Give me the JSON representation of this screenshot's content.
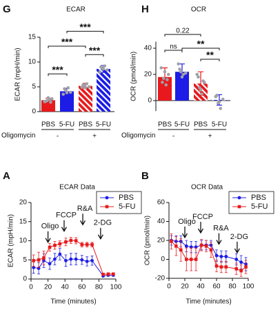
{
  "chart_data": [
    {
      "type": "bar",
      "panel": "G",
      "title": "ECAR",
      "ylabel": "ECAR (mpH/min)",
      "categories": [
        "PBS",
        "5-FU",
        "PBS",
        "5-FU"
      ],
      "colors": [
        "#e8191c",
        "#1c1ce6",
        "#e8191c",
        "#1c1ce6"
      ],
      "hatched": [
        false,
        false,
        true,
        true
      ],
      "values": [
        2.3,
        4.1,
        5.2,
        8.6
      ],
      "errors": [
        0.4,
        0.6,
        0.5,
        0.7
      ],
      "points": [
        [
          2.0,
          2.2,
          2.5,
          2.6,
          2.1,
          2.8,
          1.9
        ],
        [
          3.5,
          4.3,
          4.8,
          3.9,
          4.6,
          3.8
        ],
        [
          4.9,
          5.3,
          5.6,
          5.0,
          5.4,
          4.8
        ],
        [
          8.0,
          8.8,
          9.2,
          8.4,
          9.0,
          8.6
        ]
      ],
      "ylim": [
        0,
        15
      ],
      "yticks": [
        0,
        5,
        10,
        15
      ],
      "group_title": "Oligomycin",
      "groups": [
        "-",
        "+"
      ],
      "brackets": [
        {
          "label": "***",
          "between": [
            1,
            3
          ],
          "y": 16.2
        },
        {
          "label": "***",
          "between": [
            0,
            2
          ],
          "y": 13.2
        },
        {
          "label": "***",
          "between": [
            0,
            1
          ],
          "y": 7.6
        },
        {
          "label": "***",
          "between": [
            2,
            3
          ],
          "y": 11.5
        }
      ]
    },
    {
      "type": "bar",
      "panel": "H",
      "title": "OCR",
      "ylabel": "OCR (pmol/min)",
      "categories": [
        "PBS",
        "5-FU",
        "PBS",
        "5-FU"
      ],
      "colors": [
        "#e8191c",
        "#1c1ce6",
        "#e8191c",
        "#1c1ce6"
      ],
      "hatched": [
        false,
        false,
        true,
        true
      ],
      "values": [
        18,
        22,
        13,
        0.5
      ],
      "errors": [
        7,
        6,
        9,
        4
      ],
      "points": [
        [
          25,
          17,
          12,
          20,
          14,
          22,
          16
        ],
        [
          28,
          22,
          20,
          21,
          24,
          18
        ],
        [
          20,
          10,
          5,
          14,
          18,
          8,
          15
        ],
        [
          3,
          -2,
          -6,
          1,
          4,
          -1
        ]
      ],
      "ylim": [
        -8,
        45
      ],
      "yticks": [
        0,
        20,
        40
      ],
      "group_title": "Oligomycin",
      "groups": [
        "-",
        "+"
      ],
      "brackets": [
        {
          "label": "0.22",
          "between": [
            0,
            2
          ],
          "y": 50.5
        },
        {
          "label": "ns",
          "between": [
            0,
            1
          ],
          "y": 38.4
        },
        {
          "label": "**",
          "between": [
            1,
            3
          ],
          "y": 40
        },
        {
          "label": "**",
          "between": [
            2,
            3
          ],
          "y": 31.6
        }
      ]
    },
    {
      "type": "line",
      "panel": "A",
      "title": "ECAR Data",
      "xlabel": "Time (minutes)",
      "ylabel": "ECAR (mpH/min)",
      "x": [
        3,
        9,
        15,
        22,
        28,
        34,
        41,
        47,
        53,
        60,
        66,
        72,
        85,
        91,
        97
      ],
      "series": [
        {
          "name": "PBS",
          "color": "#1c1ce6",
          "marker": "circle",
          "values": [
            3,
            2.8,
            4.8,
            4.0,
            5.2,
            6.5,
            4.8,
            5.2,
            5.2,
            5.0,
            4.6,
            4.8,
            0.8,
            1.0,
            1.0
          ],
          "errors": [
            1.5,
            1.5,
            1.8,
            1.5,
            1.5,
            1.5,
            1.5,
            1.5,
            1.5,
            1.2,
            1.2,
            1.2,
            0.3,
            0.3,
            0.3
          ]
        },
        {
          "name": "5-FU",
          "color": "#e8191c",
          "marker": "square",
          "values": [
            4.8,
            5,
            5.5,
            8.3,
            8.8,
            9.2,
            9.7,
            10.1,
            10.0,
            9.0,
            9.0,
            9.0,
            1.2,
            1.3,
            1.3
          ],
          "errors": [
            1.5,
            2,
            1.8,
            1,
            1,
            0.8,
            1,
            0.8,
            0.8,
            0.6,
            0.6,
            0.6,
            0.3,
            0.3,
            0.3
          ]
        }
      ],
      "xlim": [
        0,
        100
      ],
      "xticks": [
        0,
        20,
        40,
        60,
        80,
        100
      ],
      "ylim": [
        0,
        20
      ],
      "yticks": [
        0,
        5,
        10,
        15,
        20
      ],
      "legend": "upper right",
      "annotations": [
        {
          "label": "Oligo",
          "x": 20,
          "y": 9.6
        },
        {
          "label": "FCCP",
          "x": 39,
          "y": 12.5
        },
        {
          "label": "R&A",
          "x": 61,
          "y": 14.2
        },
        {
          "label": "2-DG",
          "x": 82,
          "y": 10.5
        }
      ]
    },
    {
      "type": "line",
      "panel": "B",
      "title": "OCR Data",
      "xlabel": "Time (minutes)",
      "ylabel": "OCR (pmol/min)",
      "x": [
        3,
        9,
        15,
        22,
        28,
        34,
        41,
        47,
        53,
        60,
        66,
        72,
        85,
        91,
        97
      ],
      "series": [
        {
          "name": "PBS",
          "color": "#1c1ce6",
          "marker": "circle",
          "values": [
            20,
            19,
            19,
            14,
            13,
            13,
            15,
            15,
            15,
            4,
            3,
            3,
            0,
            -3,
            -5
          ],
          "errors": [
            5,
            6,
            6,
            6,
            6,
            6,
            5,
            5,
            5,
            6,
            6,
            6,
            6,
            7,
            7
          ]
        },
        {
          "name": "5-FU",
          "color": "#e8191c",
          "marker": "square",
          "values": [
            19,
            14,
            10,
            0,
            0,
            0,
            15,
            14,
            10,
            -7,
            -8,
            -8,
            -10,
            -12,
            -8
          ],
          "errors": [
            8,
            10,
            12,
            12,
            12,
            12,
            6,
            6,
            8,
            6,
            6,
            6,
            6,
            6,
            7
          ]
        }
      ],
      "xlim": [
        0,
        100
      ],
      "xticks": [
        0,
        20,
        40,
        60,
        80,
        100
      ],
      "ylim": [
        -20,
        60
      ],
      "yticks": [
        -20,
        0,
        20,
        40,
        60
      ],
      "legend": "upper right",
      "annotations": [
        {
          "label": "Oligo",
          "x": 20,
          "y": 23
        },
        {
          "label": "FCCP",
          "x": 40,
          "y": 28
        },
        {
          "label": "R&A",
          "x": 63,
          "y": 16
        },
        {
          "label": "2-DG",
          "x": 86,
          "y": 7
        }
      ]
    }
  ]
}
